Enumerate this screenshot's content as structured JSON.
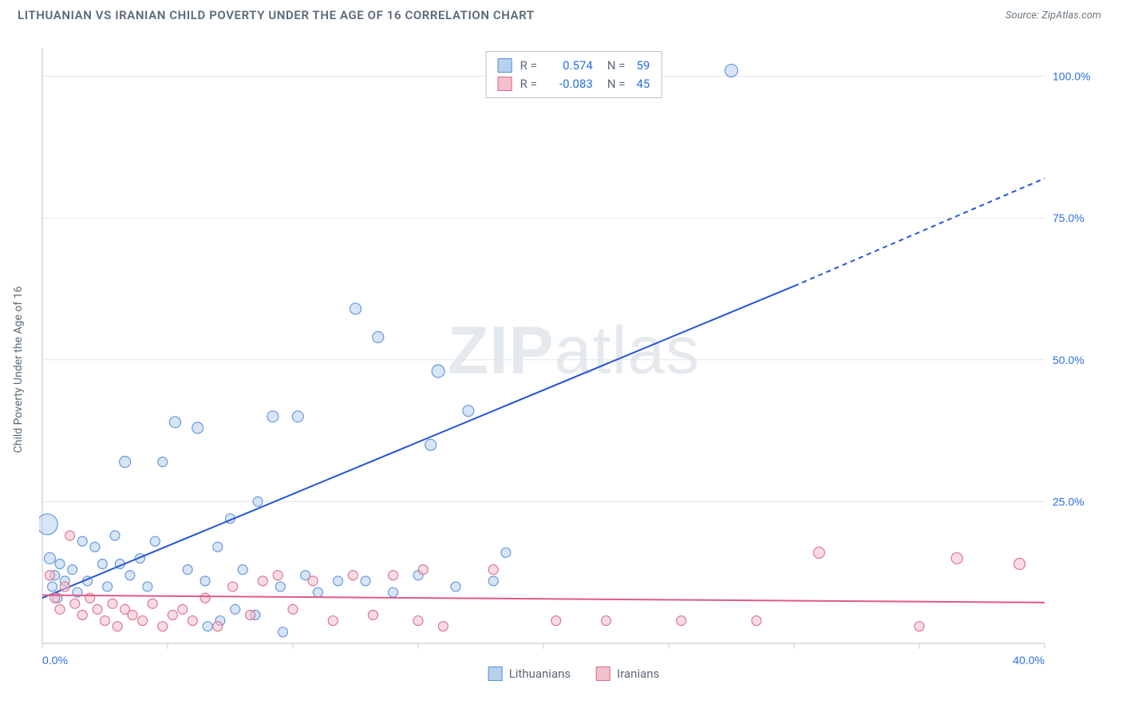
{
  "title": "LITHUANIAN VS IRANIAN CHILD POVERTY UNDER THE AGE OF 16 CORRELATION CHART",
  "source": "Source: ZipAtlas.com",
  "watermark": "ZIPatlas",
  "y_axis_label": "Child Poverty Under the Age of 16",
  "chart": {
    "type": "scatter",
    "background_color": "#ffffff",
    "grid_color": "#e2e6ea",
    "axis_color": "#c7cdd3",
    "tick_color": "#9aa5b0",
    "xlim": [
      0,
      40
    ],
    "ylim": [
      0,
      105
    ],
    "xtick_step": 5,
    "xtick_labels": {
      "0": "0.0%",
      "40": "40.0%"
    },
    "ytick_positions": [
      25,
      50,
      75,
      100
    ],
    "ytick_labels": [
      "25.0%",
      "50.0%",
      "75.0%",
      "100.0%"
    ],
    "tick_label_color": "#2b6fe0",
    "tick_label_fontsize": 14,
    "series": [
      {
        "name": "Lithuanians",
        "fill": "#b6d0ee",
        "fill_opacity": 0.55,
        "stroke": "#5a8fd6",
        "stroke_opacity": 0.9,
        "marker": "circle",
        "R": 0.574,
        "N": 59,
        "trend": {
          "color": "#2455d6",
          "width": 2,
          "x0": 0,
          "y0": 8,
          "x1": 30,
          "y1": 63,
          "dash_from_x": 30,
          "dash_to_x": 40,
          "dash_to_y": 82
        },
        "points": [
          {
            "x": 0.2,
            "y": 21,
            "r": 13
          },
          {
            "x": 0.3,
            "y": 15,
            "r": 7
          },
          {
            "x": 0.4,
            "y": 10,
            "r": 6
          },
          {
            "x": 0.5,
            "y": 12,
            "r": 6
          },
          {
            "x": 0.6,
            "y": 8,
            "r": 6
          },
          {
            "x": 0.7,
            "y": 14,
            "r": 6
          },
          {
            "x": 0.9,
            "y": 11,
            "r": 6
          },
          {
            "x": 1.2,
            "y": 13,
            "r": 6
          },
          {
            "x": 1.4,
            "y": 9,
            "r": 6
          },
          {
            "x": 1.6,
            "y": 18,
            "r": 6
          },
          {
            "x": 1.8,
            "y": 11,
            "r": 6
          },
          {
            "x": 2.1,
            "y": 17,
            "r": 6
          },
          {
            "x": 2.4,
            "y": 14,
            "r": 6
          },
          {
            "x": 2.6,
            "y": 10,
            "r": 6
          },
          {
            "x": 2.9,
            "y": 19,
            "r": 6
          },
          {
            "x": 3.1,
            "y": 14,
            "r": 6
          },
          {
            "x": 3.3,
            "y": 32,
            "r": 7
          },
          {
            "x": 3.5,
            "y": 12,
            "r": 6
          },
          {
            "x": 3.9,
            "y": 15,
            "r": 6
          },
          {
            "x": 4.2,
            "y": 10,
            "r": 6
          },
          {
            "x": 4.5,
            "y": 18,
            "r": 6
          },
          {
            "x": 4.8,
            "y": 32,
            "r": 6
          },
          {
            "x": 5.3,
            "y": 39,
            "r": 7
          },
          {
            "x": 5.8,
            "y": 13,
            "r": 6
          },
          {
            "x": 6.2,
            "y": 38,
            "r": 7
          },
          {
            "x": 6.5,
            "y": 11,
            "r": 6
          },
          {
            "x": 6.6,
            "y": 3,
            "r": 6
          },
          {
            "x": 7.0,
            "y": 17,
            "r": 6
          },
          {
            "x": 7.1,
            "y": 4,
            "r": 6
          },
          {
            "x": 7.5,
            "y": 22,
            "r": 6
          },
          {
            "x": 7.7,
            "y": 6,
            "r": 6
          },
          {
            "x": 8.0,
            "y": 13,
            "r": 6
          },
          {
            "x": 8.5,
            "y": 5,
            "r": 6
          },
          {
            "x": 8.6,
            "y": 25,
            "r": 6
          },
          {
            "x": 9.2,
            "y": 40,
            "r": 7
          },
          {
            "x": 9.5,
            "y": 10,
            "r": 6
          },
          {
            "x": 9.6,
            "y": 2,
            "r": 6
          },
          {
            "x": 10.2,
            "y": 40,
            "r": 7
          },
          {
            "x": 10.5,
            "y": 12,
            "r": 6
          },
          {
            "x": 11.0,
            "y": 9,
            "r": 6
          },
          {
            "x": 11.8,
            "y": 11,
            "r": 6
          },
          {
            "x": 12.5,
            "y": 59,
            "r": 7
          },
          {
            "x": 12.9,
            "y": 11,
            "r": 6
          },
          {
            "x": 13.4,
            "y": 54,
            "r": 7
          },
          {
            "x": 14.0,
            "y": 9,
            "r": 6
          },
          {
            "x": 15.0,
            "y": 12,
            "r": 6
          },
          {
            "x": 15.5,
            "y": 35,
            "r": 7
          },
          {
            "x": 15.8,
            "y": 48,
            "r": 8
          },
          {
            "x": 16.5,
            "y": 10,
            "r": 6
          },
          {
            "x": 17.0,
            "y": 41,
            "r": 7
          },
          {
            "x": 18.0,
            "y": 11,
            "r": 6
          },
          {
            "x": 18.5,
            "y": 16,
            "r": 6
          },
          {
            "x": 27.5,
            "y": 101,
            "r": 8
          }
        ]
      },
      {
        "name": "Iranians",
        "fill": "#f2c0cc",
        "fill_opacity": 0.55,
        "stroke": "#d96a86",
        "stroke_opacity": 0.9,
        "marker": "circle",
        "R": -0.083,
        "N": 45,
        "trend": {
          "color": "#e05a86",
          "width": 2,
          "x0": 0,
          "y0": 8.5,
          "x1": 40,
          "y1": 7.2
        },
        "points": [
          {
            "x": 0.3,
            "y": 12,
            "r": 6
          },
          {
            "x": 0.5,
            "y": 8,
            "r": 6
          },
          {
            "x": 0.7,
            "y": 6,
            "r": 6
          },
          {
            "x": 0.9,
            "y": 10,
            "r": 6
          },
          {
            "x": 1.1,
            "y": 19,
            "r": 6
          },
          {
            "x": 1.3,
            "y": 7,
            "r": 6
          },
          {
            "x": 1.6,
            "y": 5,
            "r": 6
          },
          {
            "x": 1.9,
            "y": 8,
            "r": 6
          },
          {
            "x": 2.2,
            "y": 6,
            "r": 6
          },
          {
            "x": 2.5,
            "y": 4,
            "r": 6
          },
          {
            "x": 2.8,
            "y": 7,
            "r": 6
          },
          {
            "x": 3.0,
            "y": 3,
            "r": 6
          },
          {
            "x": 3.3,
            "y": 6,
            "r": 6
          },
          {
            "x": 3.6,
            "y": 5,
            "r": 6
          },
          {
            "x": 4.0,
            "y": 4,
            "r": 6
          },
          {
            "x": 4.4,
            "y": 7,
            "r": 6
          },
          {
            "x": 4.8,
            "y": 3,
            "r": 6
          },
          {
            "x": 5.2,
            "y": 5,
            "r": 6
          },
          {
            "x": 5.6,
            "y": 6,
            "r": 6
          },
          {
            "x": 6.0,
            "y": 4,
            "r": 6
          },
          {
            "x": 6.5,
            "y": 8,
            "r": 6
          },
          {
            "x": 7.0,
            "y": 3,
            "r": 6
          },
          {
            "x": 7.6,
            "y": 10,
            "r": 6
          },
          {
            "x": 8.3,
            "y": 5,
            "r": 6
          },
          {
            "x": 8.8,
            "y": 11,
            "r": 6
          },
          {
            "x": 9.4,
            "y": 12,
            "r": 6
          },
          {
            "x": 10.0,
            "y": 6,
            "r": 6
          },
          {
            "x": 10.8,
            "y": 11,
            "r": 6
          },
          {
            "x": 11.6,
            "y": 4,
            "r": 6
          },
          {
            "x": 12.4,
            "y": 12,
            "r": 6
          },
          {
            "x": 13.2,
            "y": 5,
            "r": 6
          },
          {
            "x": 14.0,
            "y": 12,
            "r": 6
          },
          {
            "x": 15.0,
            "y": 4,
            "r": 6
          },
          {
            "x": 15.2,
            "y": 13,
            "r": 6
          },
          {
            "x": 16.0,
            "y": 3,
            "r": 6
          },
          {
            "x": 18.0,
            "y": 13,
            "r": 6
          },
          {
            "x": 20.5,
            "y": 4,
            "r": 6
          },
          {
            "x": 22.5,
            "y": 4,
            "r": 6
          },
          {
            "x": 25.5,
            "y": 4,
            "r": 6
          },
          {
            "x": 28.5,
            "y": 4,
            "r": 6
          },
          {
            "x": 31.0,
            "y": 16,
            "r": 7
          },
          {
            "x": 35.0,
            "y": 3,
            "r": 6
          },
          {
            "x": 36.5,
            "y": 15,
            "r": 7
          },
          {
            "x": 39.0,
            "y": 14,
            "r": 7
          }
        ]
      }
    ]
  },
  "legend": {
    "stats_rows": [
      {
        "swatch_fill": "#b6d0ee",
        "swatch_stroke": "#5a8fd6",
        "R": "0.574",
        "N": "59"
      },
      {
        "swatch_fill": "#f2c0cc",
        "swatch_stroke": "#d96a86",
        "R": "-0.083",
        "N": "45"
      }
    ],
    "bottom": [
      {
        "label": "Lithuanians",
        "fill": "#b6d0ee",
        "stroke": "#5a8fd6"
      },
      {
        "label": "Iranians",
        "fill": "#f2c0cc",
        "stroke": "#d96a86"
      }
    ]
  }
}
